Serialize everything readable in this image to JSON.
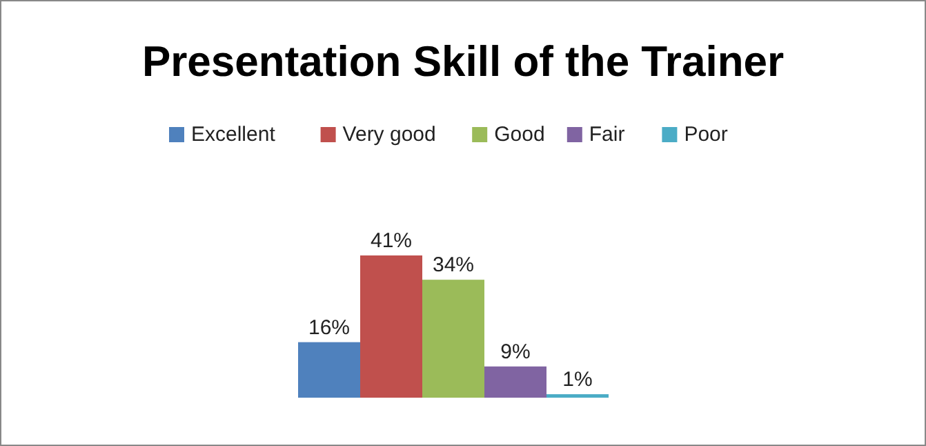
{
  "chart_data": {
    "type": "bar",
    "title": "Presentation Skill of the Trainer",
    "categories": [
      null
    ],
    "legend": "top",
    "series": [
      {
        "name": "Excellent",
        "color": "#4f81bd",
        "values": [
          16
        ],
        "value_labels": [
          "16%"
        ]
      },
      {
        "name": "Very good",
        "color": "#c0504d",
        "values": [
          41
        ],
        "value_labels": [
          "41%"
        ]
      },
      {
        "name": "Good",
        "color": "#9bbb59",
        "values": [
          34
        ],
        "value_labels": [
          "34%"
        ]
      },
      {
        "name": "Fair",
        "color": "#8064a2",
        "values": [
          9
        ],
        "value_labels": [
          "9%"
        ]
      },
      {
        "name": "Poor",
        "color": "#4bacc6",
        "values": [
          1
        ],
        "value_labels": [
          "1%"
        ]
      }
    ]
  }
}
